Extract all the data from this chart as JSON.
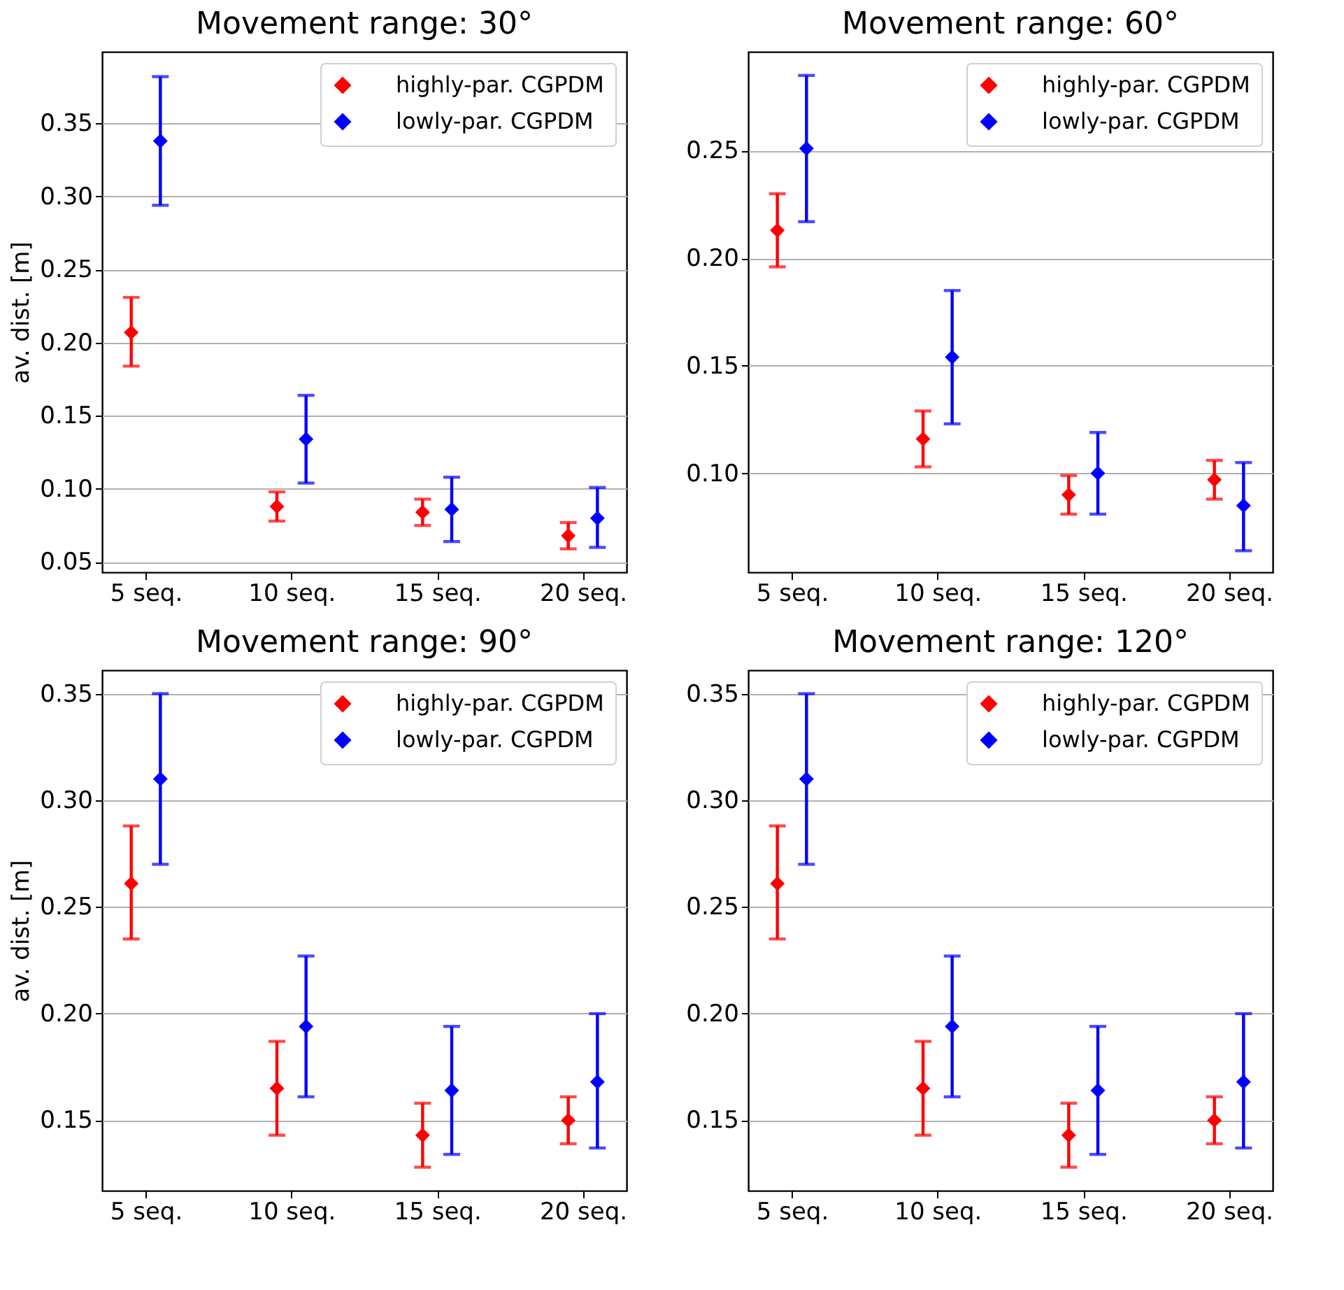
{
  "chart_data": [
    {
      "type": "scatter",
      "title": "Movement range: 30°",
      "ylabel": "av. dist. [m]",
      "categories": [
        "5 seq.",
        "10 seq.",
        "15 seq.",
        "20 seq."
      ],
      "ylim": [
        0.043,
        0.399
      ],
      "yticks": [
        {
          "value": 0.05,
          "label": "0.05"
        },
        {
          "value": 0.1,
          "label": "0.10"
        },
        {
          "value": 0.15,
          "label": "0.15"
        },
        {
          "value": 0.2,
          "label": "0.20"
        },
        {
          "value": 0.25,
          "label": "0.25"
        },
        {
          "value": 0.3,
          "label": "0.30"
        },
        {
          "value": 0.35,
          "label": "0.35"
        }
      ],
      "grid": "y",
      "legend": "top right",
      "marker": "diamond",
      "series": [
        {
          "name": "highly-par. CGPDM",
          "color": "#ff0000",
          "values": [
            0.207,
            0.088,
            0.084,
            0.068
          ],
          "errors": [
            [
              0.184,
              0.231
            ],
            [
              0.078,
              0.098
            ],
            [
              0.075,
              0.093
            ],
            [
              0.059,
              0.077
            ]
          ]
        },
        {
          "name": "lowly-par. CGPDM",
          "color": "#0000ff",
          "values": [
            0.338,
            0.134,
            0.086,
            0.08
          ],
          "errors": [
            [
              0.294,
              0.382
            ],
            [
              0.104,
              0.164
            ],
            [
              0.064,
              0.108
            ],
            [
              0.06,
              0.101
            ]
          ]
        }
      ]
    },
    {
      "type": "scatter",
      "title": "Movement range: 60°",
      "categories": [
        "5 seq.",
        "10 seq.",
        "15 seq.",
        "20 seq."
      ],
      "ylim": [
        0.054,
        0.296
      ],
      "yticks": [
        {
          "value": 0.1,
          "label": "0.10"
        },
        {
          "value": 0.15,
          "label": "0.15"
        },
        {
          "value": 0.2,
          "label": "0.20"
        },
        {
          "value": 0.25,
          "label": "0.25"
        }
      ],
      "grid": "y",
      "legend": "top right",
      "marker": "diamond",
      "series": [
        {
          "name": "highly-par. CGPDM",
          "color": "#ff0000",
          "values": [
            0.213,
            0.116,
            0.09,
            0.097
          ],
          "errors": [
            [
              0.196,
              0.23
            ],
            [
              0.103,
              0.129
            ],
            [
              0.081,
              0.099
            ],
            [
              0.088,
              0.106
            ]
          ]
        },
        {
          "name": "lowly-par. CGPDM",
          "color": "#0000ff",
          "values": [
            0.251,
            0.154,
            0.1,
            0.085
          ],
          "errors": [
            [
              0.217,
              0.285
            ],
            [
              0.123,
              0.185
            ],
            [
              0.081,
              0.119
            ],
            [
              0.064,
              0.105
            ]
          ]
        }
      ]
    },
    {
      "type": "scatter",
      "title": "Movement range: 90°",
      "ylabel": "av. dist. [m]",
      "categories": [
        "5 seq.",
        "10 seq.",
        "15 seq.",
        "20 seq."
      ],
      "ylim": [
        0.117,
        0.361
      ],
      "yticks": [
        {
          "value": 0.15,
          "label": "0.15"
        },
        {
          "value": 0.2,
          "label": "0.20"
        },
        {
          "value": 0.25,
          "label": "0.25"
        },
        {
          "value": 0.3,
          "label": "0.30"
        },
        {
          "value": 0.35,
          "label": "0.35"
        }
      ],
      "grid": "y",
      "legend": "top right",
      "marker": "diamond",
      "series": [
        {
          "name": "highly-par. CGPDM",
          "color": "#ff0000",
          "values": [
            0.261,
            0.165,
            0.143,
            0.15
          ],
          "errors": [
            [
              0.235,
              0.288
            ],
            [
              0.143,
              0.187
            ],
            [
              0.128,
              0.158
            ],
            [
              0.139,
              0.161
            ]
          ]
        },
        {
          "name": "lowly-par. CGPDM",
          "color": "#0000ff",
          "values": [
            0.31,
            0.194,
            0.164,
            0.168
          ],
          "errors": [
            [
              0.27,
              0.35
            ],
            [
              0.161,
              0.227
            ],
            [
              0.134,
              0.194
            ],
            [
              0.137,
              0.2
            ]
          ]
        }
      ]
    },
    {
      "type": "scatter",
      "title": "Movement range: 120°",
      "categories": [
        "5 seq.",
        "10 seq.",
        "15 seq.",
        "20 seq."
      ],
      "ylim": [
        0.117,
        0.361
      ],
      "yticks": [
        {
          "value": 0.15,
          "label": "0.15"
        },
        {
          "value": 0.2,
          "label": "0.20"
        },
        {
          "value": 0.25,
          "label": "0.25"
        },
        {
          "value": 0.3,
          "label": "0.30"
        },
        {
          "value": 0.35,
          "label": "0.35"
        }
      ],
      "grid": "y",
      "legend": "top right",
      "marker": "diamond",
      "series": [
        {
          "name": "highly-par. CGPDM",
          "color": "#ff0000",
          "values": [
            0.261,
            0.165,
            0.143,
            0.15
          ],
          "errors": [
            [
              0.235,
              0.288
            ],
            [
              0.143,
              0.187
            ],
            [
              0.128,
              0.158
            ],
            [
              0.139,
              0.161
            ]
          ]
        },
        {
          "name": "lowly-par. CGPDM",
          "color": "#0000ff",
          "values": [
            0.31,
            0.194,
            0.164,
            0.168
          ],
          "errors": [
            [
              0.27,
              0.35
            ],
            [
              0.161,
              0.227
            ],
            [
              0.134,
              0.194
            ],
            [
              0.137,
              0.2
            ]
          ]
        }
      ]
    }
  ]
}
